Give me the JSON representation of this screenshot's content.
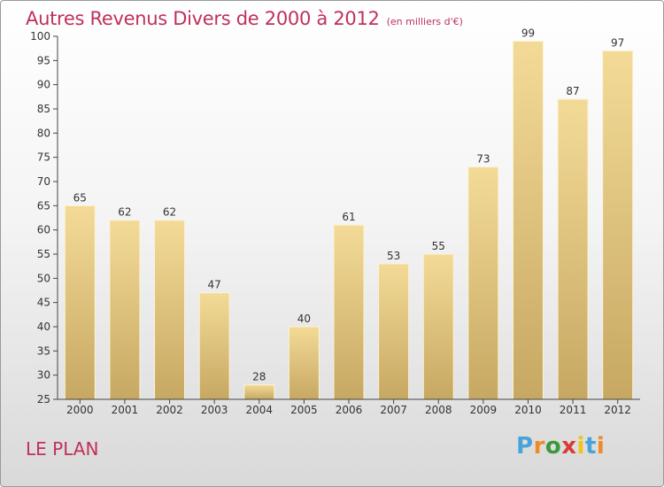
{
  "title": "Autres Revenus Divers de 2000 à 2012",
  "subtitle": "(en milliers d'€)",
  "place": "LE PLAN",
  "logo": {
    "text": "Proxiti",
    "letters": [
      "P",
      "r",
      "o",
      "x",
      "i",
      "t",
      "i"
    ],
    "colors": [
      "#4aa3d8",
      "#ef8a2a",
      "#3a9a3a",
      "#d93a3a",
      "#f0c419",
      "#4aa3d8",
      "#ef8a2a"
    ]
  },
  "colors": {
    "bar": "#e8cc84",
    "accent": "#c0305a"
  },
  "chart_data": {
    "type": "bar",
    "categories": [
      "2000",
      "2001",
      "2002",
      "2003",
      "2004",
      "2005",
      "2006",
      "2007",
      "2008",
      "2009",
      "2010",
      "2011",
      "2012"
    ],
    "values": [
      65,
      62,
      62,
      47,
      28,
      40,
      61,
      53,
      55,
      73,
      99,
      87,
      97
    ],
    "ylim": [
      25,
      100
    ],
    "yticks": [
      25,
      30,
      35,
      40,
      45,
      50,
      55,
      60,
      65,
      70,
      75,
      80,
      85,
      90,
      95,
      100
    ],
    "grid": false
  }
}
